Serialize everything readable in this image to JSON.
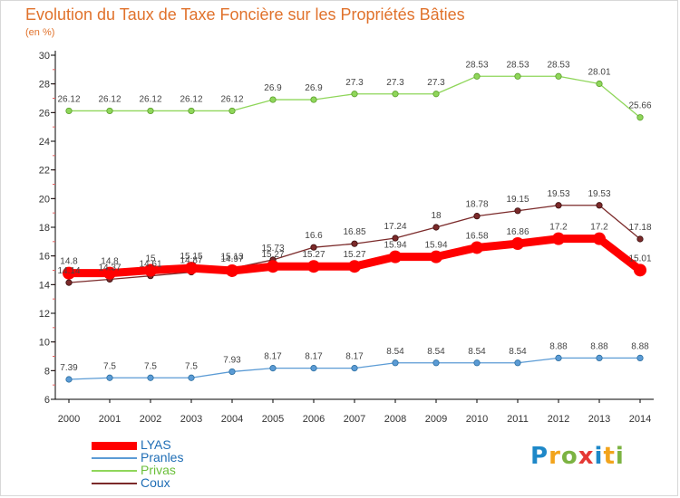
{
  "title": "Evolution du Taux de Taxe Foncière sur les Propriétés Bâties",
  "subtitle": "(en %)",
  "logo": {
    "text": "Proxiti",
    "colors": [
      "#1e88c8",
      "#f2a41c",
      "#7cb342",
      "#e53935",
      "#1e88c8",
      "#f2a41c",
      "#7cb342"
    ]
  },
  "chart_data": {
    "type": "line",
    "x": [
      "2000",
      "2001",
      "2002",
      "2003",
      "2004",
      "2005",
      "2006",
      "2007",
      "2008",
      "2009",
      "2010",
      "2011",
      "2012",
      "2013",
      "2014"
    ],
    "ylim": [
      6,
      30
    ],
    "yticks": [
      6,
      8,
      10,
      12,
      14,
      16,
      18,
      20,
      22,
      24,
      26,
      28,
      30
    ],
    "grid": false,
    "legend_position": "bottom-left",
    "series": [
      {
        "name": "LYAS",
        "color": "#ff0000",
        "emphasis": true,
        "values": [
          14.8,
          14.8,
          15,
          15.15,
          14.97,
          15.27,
          15.27,
          15.27,
          15.94,
          15.94,
          16.58,
          16.86,
          17.2,
          17.2,
          15.01
        ],
        "labels": [
          "14.8",
          "14.8",
          "15",
          "15.15",
          "14.97",
          "15.27",
          "15.27",
          "15.27",
          "15.94",
          "15.94",
          "16.58",
          "16.86",
          "17.2",
          "17.2",
          "15.01"
        ]
      },
      {
        "name": "Pranles",
        "color": "#5b9bd5",
        "values": [
          7.39,
          7.5,
          7.5,
          7.5,
          7.93,
          8.17,
          8.17,
          8.17,
          8.54,
          8.54,
          8.54,
          8.54,
          8.88,
          8.88,
          8.88
        ],
        "labels": [
          "7.39",
          "7.5",
          "7.5",
          "7.5",
          "7.93",
          "8.17",
          "8.17",
          "8.17",
          "8.54",
          "8.54",
          "8.54",
          "8.54",
          "8.88",
          "8.88",
          "8.88"
        ]
      },
      {
        "name": "Privas",
        "color": "#8fd65a",
        "values": [
          26.12,
          26.12,
          26.12,
          26.12,
          26.12,
          26.9,
          26.9,
          27.3,
          27.3,
          27.3,
          28.53,
          28.53,
          28.53,
          28.01,
          25.66
        ],
        "labels": [
          "26.12",
          "26.12",
          "26.12",
          "26.12",
          "26.12",
          "26.9",
          "26.9",
          "27.3",
          "27.3",
          "27.3",
          "28.53",
          "28.53",
          "28.53",
          "28.01",
          "25.66"
        ]
      },
      {
        "name": "Coux",
        "color": "#7b2a2a",
        "values": [
          14.14,
          14.37,
          14.61,
          14.87,
          15.13,
          15.73,
          16.6,
          16.85,
          17.24,
          18,
          18.78,
          19.15,
          19.53,
          19.53,
          17.18
        ],
        "labels": [
          "14.14",
          "14.37",
          "14.61",
          "14.87",
          "15.13",
          "15.73",
          "16.6",
          "16.85",
          "17.24",
          "18",
          "18.78",
          "19.15",
          "19.53",
          "19.53",
          "17.18"
        ]
      }
    ]
  }
}
